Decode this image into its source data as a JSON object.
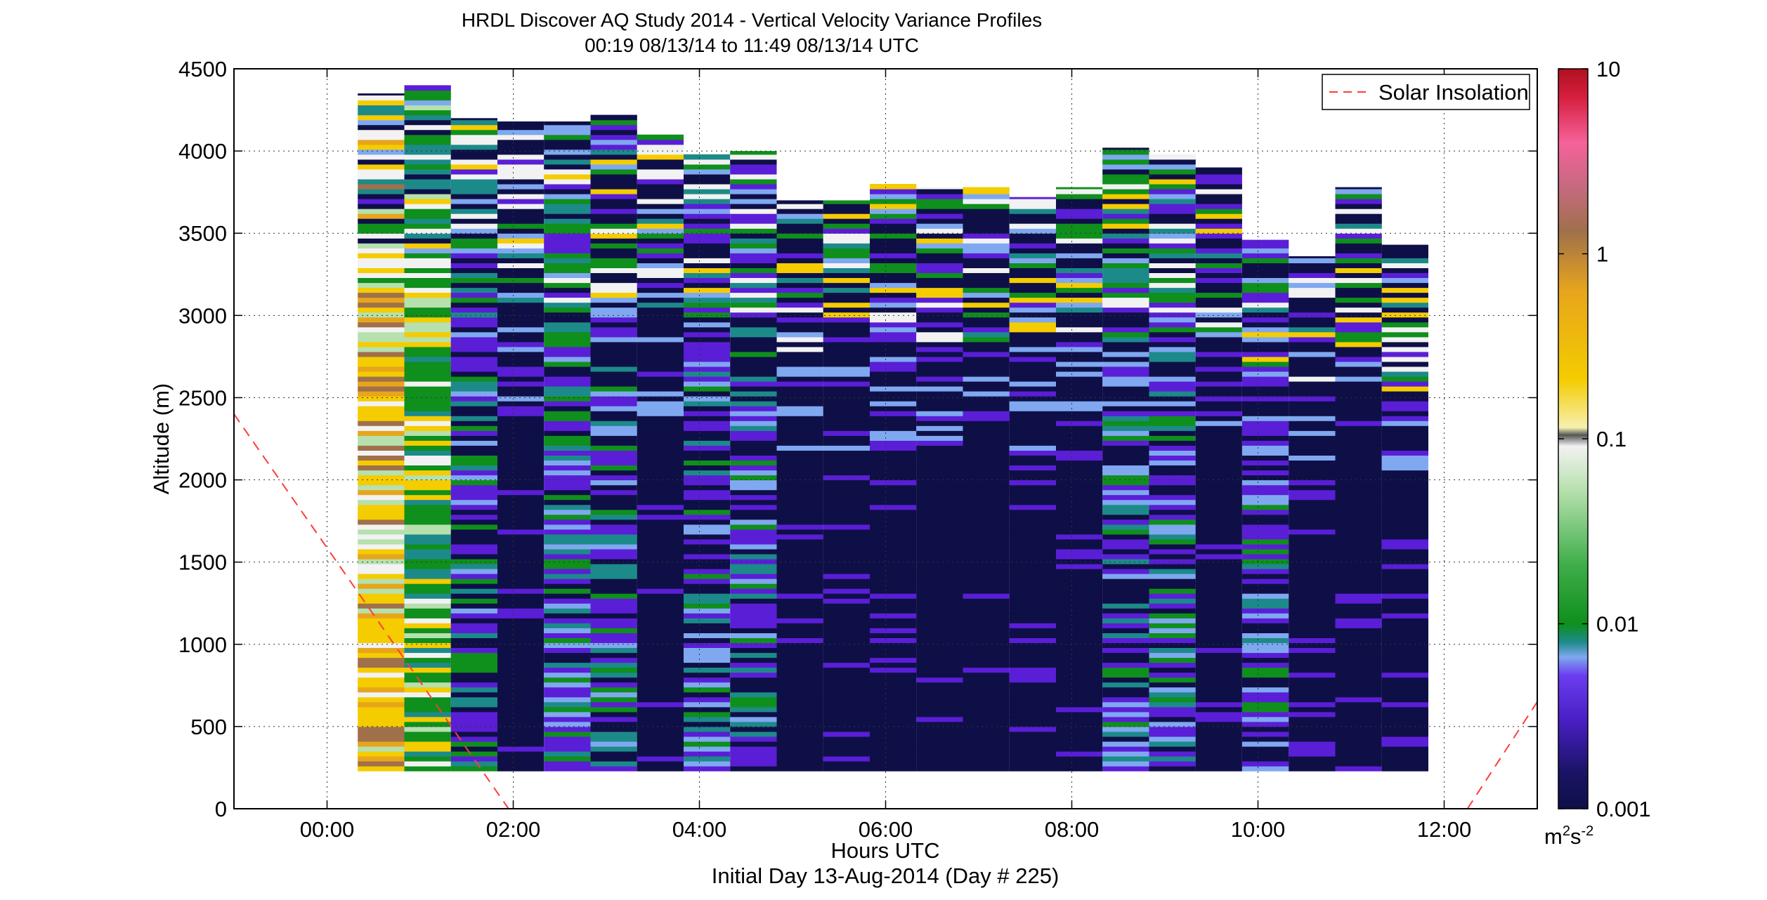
{
  "figure": {
    "title_line1": "HRDL Discover AQ Study 2014 - Vertical Velocity Variance Profiles",
    "title_line2": "00:19 08/13/14 to 11:49 08/13/14  UTC",
    "xlabel": "Hours UTC",
    "xlabel_sub": "Initial Day 13-Aug-2014 (Day # 225)",
    "ylabel": "Altitude (m)"
  },
  "colorbar": {
    "ticks": [
      "10",
      "1",
      "0.1",
      "0.01",
      "0.001"
    ],
    "unit_base": "m",
    "unit_sup1": "2",
    "unit_mid": "s",
    "unit_sup2": "-2",
    "colors": {
      "low": "#0f0f47",
      "purple": "#5a1ed6",
      "blue": "#7fa8f0",
      "teal": "#1d8a8a",
      "green": "#0f8f1c",
      "lightgreen": "#b6e0ad",
      "white": "#f2f2f2",
      "yellow": "#f4cc00",
      "orange": "#e7a51c",
      "brown": "#a0704a",
      "pink": "#f5629a",
      "red": "#b0101e"
    }
  },
  "legend": {
    "solar_label": "Solar Insolation",
    "solar_color": "#ff3b3b"
  },
  "chart_data": {
    "type": "heatmap",
    "x_ticks": [
      "00:00",
      "02:00",
      "04:00",
      "06:00",
      "08:00",
      "10:00",
      "12:00"
    ],
    "y_ticks": [
      "0",
      "500",
      "1000",
      "1500",
      "2000",
      "2500",
      "3000",
      "3500",
      "4000",
      "4500"
    ],
    "xlim_hours": [
      -1,
      13
    ],
    "ylim": [
      0,
      4500
    ],
    "grid": true,
    "legend_position": "top-right",
    "colorscale": "log",
    "clim": [
      0.001,
      10
    ],
    "profile_time_start_hours": [
      0.33,
      0.83,
      1.33,
      1.83,
      2.33,
      2.83,
      3.33,
      3.83,
      4.33,
      4.83,
      5.33,
      5.83,
      6.33,
      6.83,
      7.33,
      7.83,
      8.33,
      8.83,
      9.33,
      9.83,
      10.33,
      10.83,
      11.33
    ],
    "profile_bottom_m": 230,
    "profile_top_m": [
      4350,
      4400,
      4200,
      4180,
      4180,
      4220,
      4100,
      3980,
      4000,
      3700,
      3700,
      3800,
      3780,
      3780,
      3720,
      3780,
      4020,
      3980,
      3900,
      3460,
      3360,
      3780,
      3430
    ],
    "profile_dominant_level": [
      "0.1-1",
      "0.01-0.1",
      "0.002-0.01",
      "0.001-0.002",
      "0.002-0.01",
      "0.002-0.01",
      "0.001-0.002",
      "0.002-0.01",
      "0.002-0.01",
      "0.001-0.002",
      "0.001-0.002",
      "0.001-0.002",
      "0.001-0.002",
      "0.001-0.002",
      "0.001-0.002",
      "0.001-0.002",
      "0.002-0.01",
      "0.002-0.01",
      "0.001-0.002",
      "0.002-0.01",
      "0.001-0.002",
      "0.001-0.002",
      "0.001-0.002"
    ],
    "solar_insolation_segments": [
      {
        "x": [
          -1.0,
          1.95
        ],
        "y": [
          2400,
          0
        ]
      },
      {
        "x": [
          12.25,
          13.0
        ],
        "y": [
          0,
          650
        ]
      }
    ]
  }
}
